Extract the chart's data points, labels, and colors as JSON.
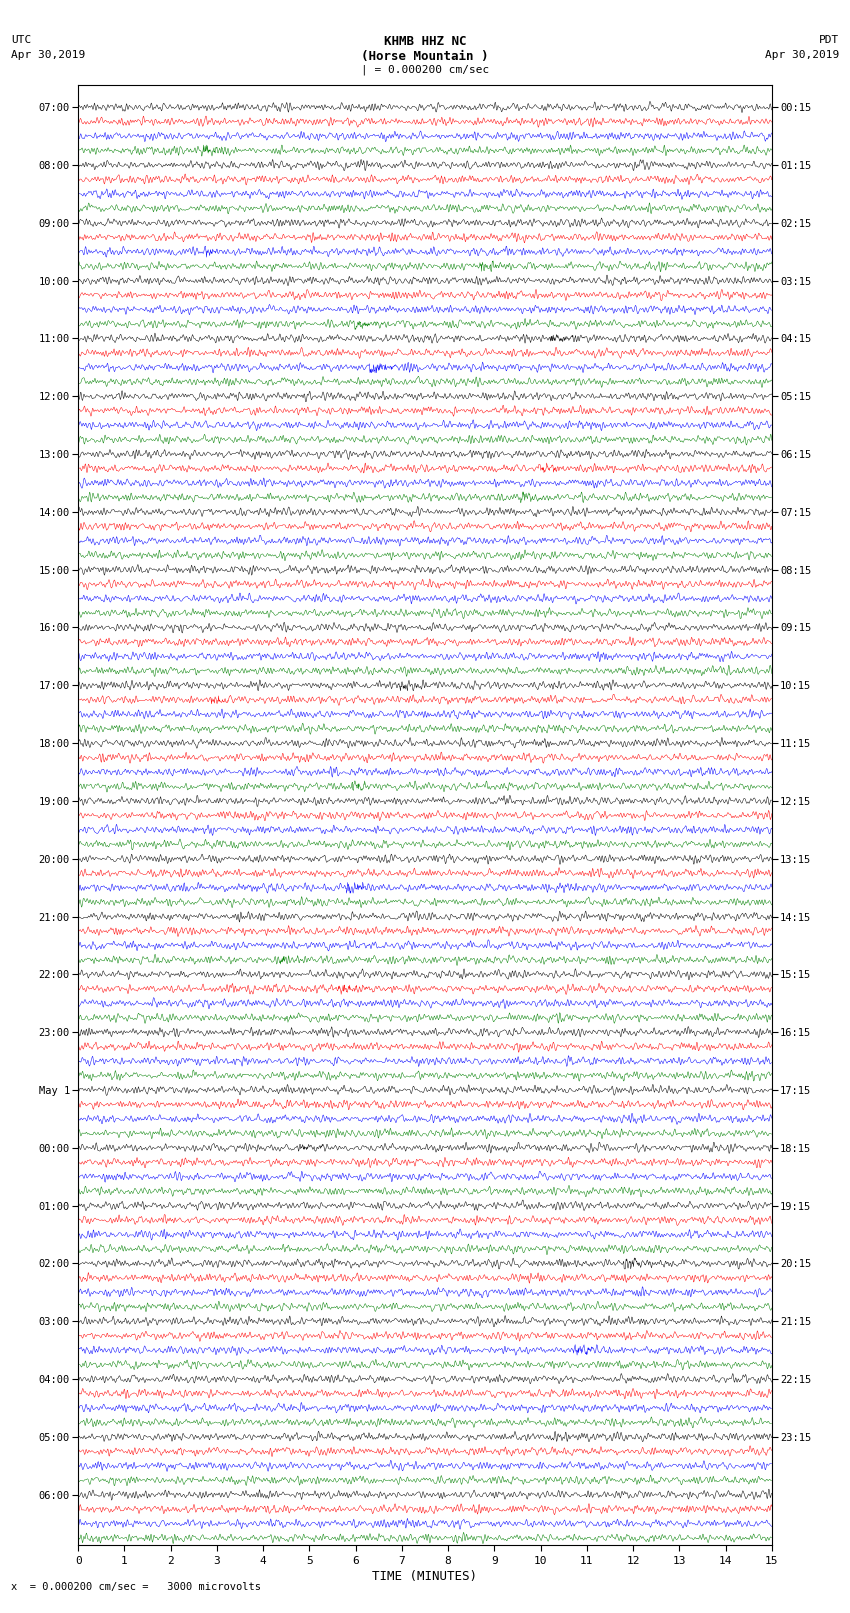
{
  "title_line1": "KHMB HHZ NC",
  "title_line2": "(Horse Mountain )",
  "title_line3": "| = 0.000200 cm/sec",
  "left_label_top": "UTC",
  "left_label_date": "Apr 30,2019",
  "right_label_top": "PDT",
  "right_label_date": "Apr 30,2019",
  "xlabel": "TIME (MINUTES)",
  "footer_symbol": "x",
  "footer_text": "= 0.000200 cm/sec =   3000 microvolts",
  "x_min": 0,
  "x_max": 15,
  "colors": [
    "black",
    "red",
    "blue",
    "green"
  ],
  "left_times": [
    "07:00",
    "",
    "",
    "",
    "08:00",
    "",
    "",
    "",
    "09:00",
    "",
    "",
    "",
    "10:00",
    "",
    "",
    "",
    "11:00",
    "",
    "",
    "",
    "12:00",
    "",
    "",
    "",
    "13:00",
    "",
    "",
    "",
    "14:00",
    "",
    "",
    "",
    "15:00",
    "",
    "",
    "",
    "16:00",
    "",
    "",
    "",
    "17:00",
    "",
    "",
    "",
    "18:00",
    "",
    "",
    "",
    "19:00",
    "",
    "",
    "",
    "20:00",
    "",
    "",
    "",
    "21:00",
    "",
    "",
    "",
    "22:00",
    "",
    "",
    "",
    "23:00",
    "",
    "",
    "",
    "May 1",
    "",
    "",
    "",
    "00:00",
    "",
    "",
    "",
    "01:00",
    "",
    "",
    "",
    "02:00",
    "",
    "",
    "",
    "03:00",
    "",
    "",
    "",
    "04:00",
    "",
    "",
    "",
    "05:00",
    "",
    "",
    "",
    "06:00",
    "",
    "",
    ""
  ],
  "left_hour_rows": [
    0,
    4,
    8,
    12,
    16,
    20,
    24,
    28,
    32,
    36,
    40,
    44,
    48,
    52,
    56,
    60,
    64,
    68,
    72,
    76,
    80,
    84,
    88,
    92,
    96
  ],
  "left_hour_labels": [
    "07:00",
    "08:00",
    "09:00",
    "10:00",
    "11:00",
    "12:00",
    "13:00",
    "14:00",
    "15:00",
    "16:00",
    "17:00",
    "18:00",
    "19:00",
    "20:00",
    "21:00",
    "22:00",
    "23:00",
    "May 1",
    "00:00",
    "01:00",
    "02:00",
    "03:00",
    "04:00",
    "05:00",
    "06:00"
  ],
  "right_hour_rows": [
    0,
    4,
    8,
    12,
    16,
    20,
    24,
    28,
    32,
    36,
    40,
    44,
    48,
    52,
    56,
    60,
    64,
    68,
    72,
    76,
    80,
    84,
    88,
    92
  ],
  "right_hour_labels": [
    "00:15",
    "01:15",
    "02:15",
    "03:15",
    "04:15",
    "05:15",
    "06:15",
    "07:15",
    "08:15",
    "09:15",
    "10:15",
    "11:15",
    "12:15",
    "13:15",
    "14:15",
    "15:15",
    "16:15",
    "17:15",
    "18:15",
    "19:15",
    "20:15",
    "21:15",
    "22:15",
    "23:15"
  ],
  "n_rows": 100,
  "background_color": "white",
  "trace_amplitude": 0.38,
  "seed": 42
}
